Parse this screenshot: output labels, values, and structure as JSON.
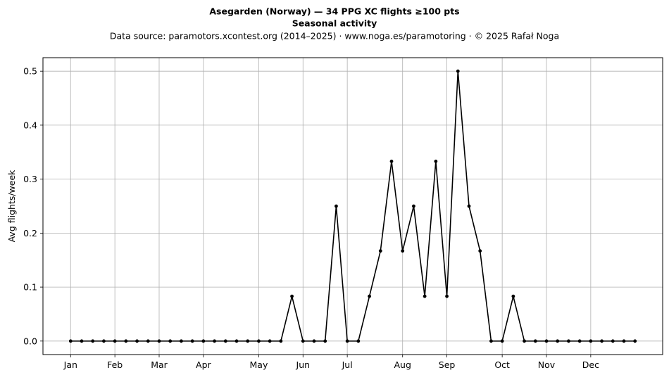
{
  "chart_data": {
    "type": "line",
    "title": "Asegarden (Norway)  —  34 PPG XC flights ≥100 pts",
    "subtitle": "Seasonal activity",
    "source": "Data source: paramotors.xcontest.org (2014–2025)  ·  www.noga.es/paramotoring  ·  © 2025 Rafał Noga",
    "xlabel": "",
    "ylabel": "Avg flights/week",
    "x_unit": "week of year",
    "xlim": [
      -1.5,
      54.5
    ],
    "ylim": [
      -0.025,
      0.525
    ],
    "yticks": [
      0.0,
      0.1,
      0.2,
      0.3,
      0.4,
      0.5
    ],
    "ytick_labels": [
      "0.0",
      "0.1",
      "0.2",
      "0.3",
      "0.4",
      "0.5"
    ],
    "xticks": [
      1,
      5,
      9,
      13,
      18,
      22,
      26,
      31,
      35,
      40,
      44,
      48
    ],
    "xtick_labels": [
      "Jan",
      "Feb",
      "Mar",
      "Apr",
      "May",
      "Jun",
      "Jul",
      "Aug",
      "Sep",
      "Oct",
      "Nov",
      "Dec"
    ],
    "grid": true,
    "line_color": "#000000",
    "grid_color": "#b0b0b0",
    "x": [
      1,
      2,
      3,
      4,
      5,
      6,
      7,
      8,
      9,
      10,
      11,
      12,
      13,
      14,
      15,
      16,
      17,
      18,
      19,
      20,
      21,
      22,
      23,
      24,
      25,
      26,
      27,
      28,
      29,
      30,
      31,
      32,
      33,
      34,
      35,
      36,
      37,
      38,
      39,
      40,
      41,
      42,
      43,
      44,
      45,
      46,
      47,
      48,
      49,
      50,
      51,
      52
    ],
    "values": [
      0,
      0,
      0,
      0,
      0,
      0,
      0,
      0,
      0,
      0,
      0,
      0,
      0,
      0,
      0,
      0,
      0,
      0,
      0,
      0,
      0.083,
      0,
      0,
      0,
      0.25,
      0,
      0,
      0.083,
      0.167,
      0.333,
      0.167,
      0.25,
      0.083,
      0.333,
      0.083,
      0.5,
      0.25,
      0.167,
      0,
      0,
      0.083,
      0,
      0,
      0,
      0,
      0,
      0,
      0,
      0,
      0,
      0,
      0
    ]
  }
}
